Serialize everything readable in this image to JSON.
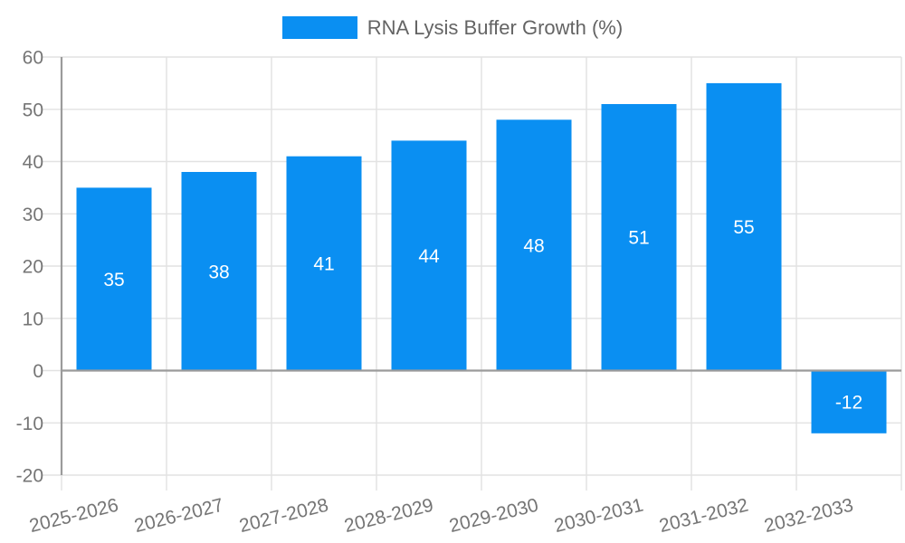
{
  "chart_data": {
    "type": "bar",
    "title": "RNA Lysis Buffer Growth (%)",
    "categories": [
      "2025-2026",
      "2026-2027",
      "2027-2028",
      "2028-2029",
      "2029-2030",
      "2030-2031",
      "2031-2032",
      "2032-2033"
    ],
    "values": [
      35,
      38,
      41,
      44,
      48,
      51,
      55,
      -12
    ],
    "series": [
      {
        "name": "RNA Lysis Buffer Growth (%)",
        "values": [
          35,
          38,
          41,
          44,
          48,
          51,
          55,
          -12
        ]
      }
    ],
    "xlabel": "",
    "ylabel": "",
    "ylim": [
      -20,
      60
    ],
    "ytick_step": 10,
    "ytick_labels": [
      "-20",
      "-10",
      "0",
      "10",
      "20",
      "30",
      "40",
      "50",
      "60"
    ],
    "grid": true,
    "legend_position": "top-center",
    "x_label_rotation_deg": -14,
    "colors": {
      "bar": "#0a8ff2",
      "value_label": "#ffffff",
      "axis_text": "#757575",
      "legend_text": "#646464",
      "gridline": "#e2e2e2",
      "axis_line": "#9b9b9b"
    }
  }
}
